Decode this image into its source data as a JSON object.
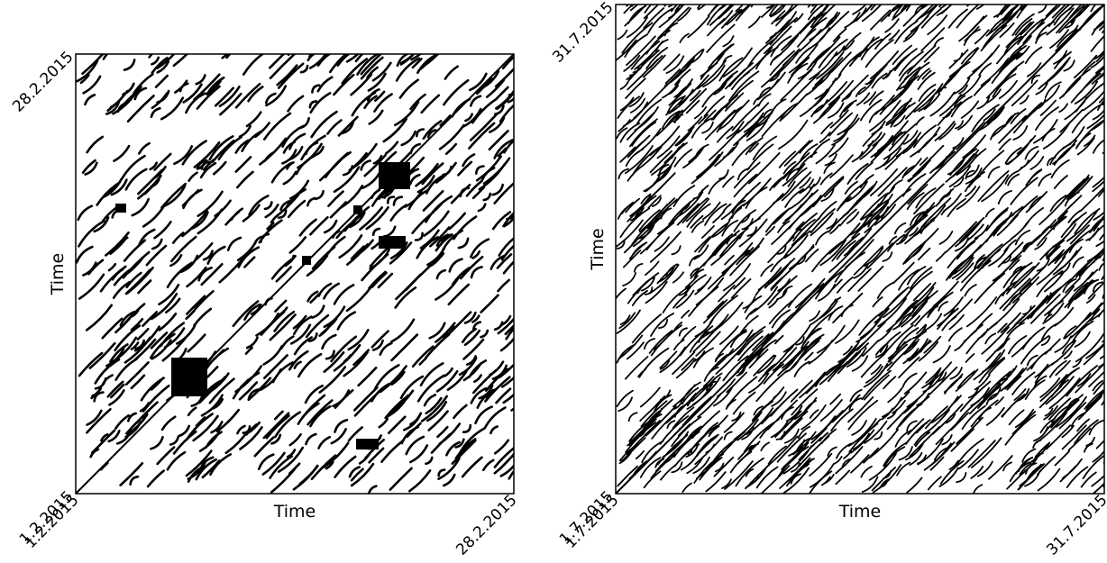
{
  "chart_data": [
    {
      "type": "recurrence",
      "xlabel": "Time",
      "ylabel": "Time",
      "xticks": [
        "1.2.2015",
        "28.2.2015"
      ],
      "yticks": [
        "1.2.2015",
        "28.2.2015"
      ]
    },
    {
      "type": "recurrence",
      "xlabel": "Time",
      "ylabel": "Time",
      "xticks": [
        "1.7.2015",
        "31.7.2015"
      ],
      "yticks": [
        "1.7.2015",
        "31.7.2015"
      ]
    }
  ]
}
